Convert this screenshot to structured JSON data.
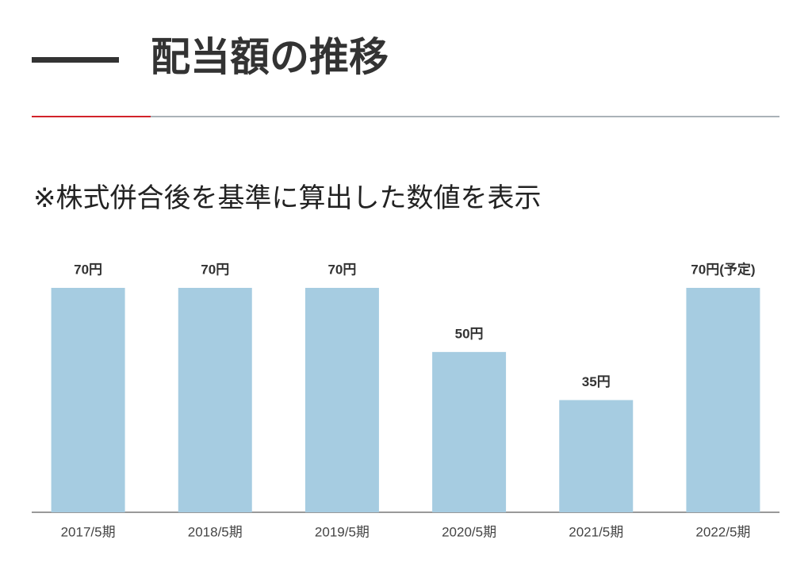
{
  "chart_data": {
    "type": "bar",
    "title": "配当額の推移",
    "subtitle": "※株式併合後を基準に算出した数値を表示",
    "categories": [
      "2017/5期",
      "2018/5期",
      "2019/5期",
      "2020/5期",
      "2021/5期",
      "2022/5期"
    ],
    "values": [
      70,
      70,
      70,
      50,
      35,
      70
    ],
    "value_labels": [
      "70円",
      "70円",
      "70円",
      "50円",
      "35円",
      "70円(予定)"
    ],
    "color": "#a6cce1"
  }
}
